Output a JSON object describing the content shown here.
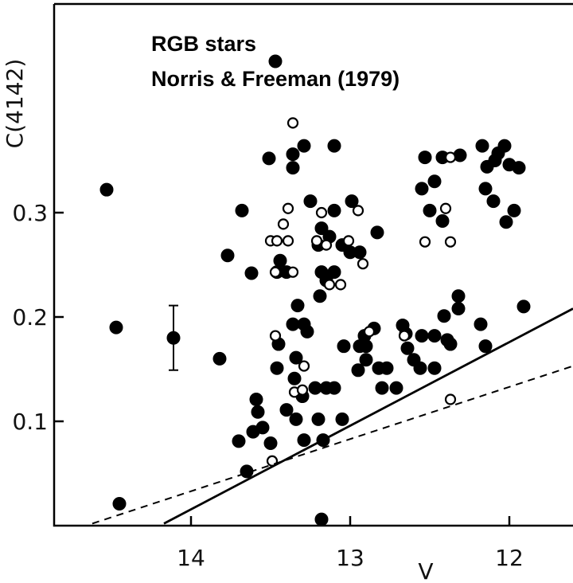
{
  "chart_data": {
    "type": "scatter",
    "title": "RGB stars",
    "subtitle": "Norris & Freeman (1979)",
    "x_label": "V",
    "y_label": "C(4142)",
    "xlim": [
      14.86,
      11.6
    ],
    "ylim": [
      0,
      0.5
    ],
    "xticks": [
      14,
      13,
      12
    ],
    "yticks": [
      0.1,
      0.2,
      0.3
    ],
    "series": [
      {
        "type": "scatter",
        "marker": "filled",
        "color": "#000000",
        "x": [
          14.53,
          14.47,
          14.45,
          13.47,
          13.51,
          13.36,
          13.29,
          13.36,
          13.25,
          13.68,
          13.77,
          13.62,
          13.44,
          13.46,
          13.4,
          13.1,
          13.18,
          13.13,
          13.2,
          13.05,
          13.18,
          13.1,
          13.15,
          13.0,
          12.94,
          13.19,
          12.99,
          13.1,
          12.53,
          12.42,
          12.31,
          12.17,
          12.03,
          12.07,
          12.14,
          12.09,
          12.0,
          11.94,
          12.55,
          12.47,
          12.5,
          12.42,
          12.15,
          12.1,
          11.97,
          12.02,
          12.83,
          13.33,
          13.36,
          13.29,
          13.45,
          13.27,
          13.46,
          13.34,
          13.35,
          13.3,
          13.4,
          13.34,
          13.22,
          13.15,
          13.1,
          13.2,
          13.05,
          13.17,
          13.29,
          13.5,
          13.55,
          13.61,
          13.58,
          13.59,
          13.7,
          13.65,
          13.82,
          13.04,
          12.94,
          12.9,
          12.85,
          12.91,
          12.9,
          12.82,
          12.77,
          12.8,
          12.71,
          12.95,
          12.67,
          12.65,
          12.64,
          12.6,
          12.56,
          12.55,
          12.47,
          12.41,
          12.39,
          12.32,
          12.37,
          12.47,
          12.32,
          12.18,
          12.15,
          11.91,
          13.18
        ],
        "values": [
          0.322,
          0.19,
          0.021,
          0.445,
          0.352,
          0.356,
          0.364,
          0.343,
          0.311,
          0.302,
          0.259,
          0.242,
          0.254,
          0.243,
          0.243,
          0.302,
          0.285,
          0.277,
          0.269,
          0.269,
          0.243,
          0.243,
          0.235,
          0.262,
          0.262,
          0.22,
          0.311,
          0.364,
          0.353,
          0.353,
          0.355,
          0.364,
          0.364,
          0.357,
          0.344,
          0.35,
          0.346,
          0.343,
          0.323,
          0.33,
          0.302,
          0.292,
          0.323,
          0.311,
          0.302,
          0.291,
          0.281,
          0.211,
          0.193,
          0.193,
          0.174,
          0.186,
          0.151,
          0.161,
          0.141,
          0.124,
          0.111,
          0.102,
          0.132,
          0.132,
          0.132,
          0.102,
          0.102,
          0.082,
          0.082,
          0.079,
          0.094,
          0.09,
          0.109,
          0.121,
          0.081,
          0.052,
          0.16,
          0.172,
          0.172,
          0.172,
          0.189,
          0.182,
          0.159,
          0.151,
          0.151,
          0.132,
          0.132,
          0.149,
          0.192,
          0.184,
          0.17,
          0.159,
          0.151,
          0.182,
          0.182,
          0.201,
          0.178,
          0.208,
          0.174,
          0.151,
          0.22,
          0.193,
          0.172,
          0.21,
          0.006
        ]
      },
      {
        "type": "scatter",
        "marker": "open",
        "color": "#000000",
        "x": [
          13.36,
          13.5,
          13.46,
          13.39,
          13.42,
          13.39,
          13.47,
          13.36,
          13.18,
          13.21,
          13.15,
          13.13,
          13.06,
          13.01,
          12.95,
          12.92,
          13.47,
          13.29,
          13.35,
          13.3,
          13.49,
          12.88,
          12.66,
          12.37,
          12.4,
          12.37,
          12.53,
          12.37
        ],
        "values": [
          0.386,
          0.273,
          0.273,
          0.273,
          0.289,
          0.304,
          0.243,
          0.243,
          0.3,
          0.273,
          0.269,
          0.231,
          0.231,
          0.273,
          0.302,
          0.251,
          0.182,
          0.153,
          0.128,
          0.13,
          0.062,
          0.186,
          0.182,
          0.353,
          0.304,
          0.272,
          0.272,
          0.121
        ]
      },
      {
        "type": "errorbar",
        "marker": "filled",
        "color": "#000000",
        "x": [
          14.11
        ],
        "values": [
          0.18
        ],
        "errors": [
          0.031
        ]
      },
      {
        "type": "line",
        "style": "solid",
        "color": "#000000",
        "x": [
          14.17,
          11.6
        ],
        "values": [
          0.002,
          0.208
        ]
      },
      {
        "type": "line",
        "style": "dashed",
        "color": "#000000",
        "x": [
          14.62,
          11.6
        ],
        "values": [
          0.002,
          0.153
        ]
      }
    ]
  }
}
